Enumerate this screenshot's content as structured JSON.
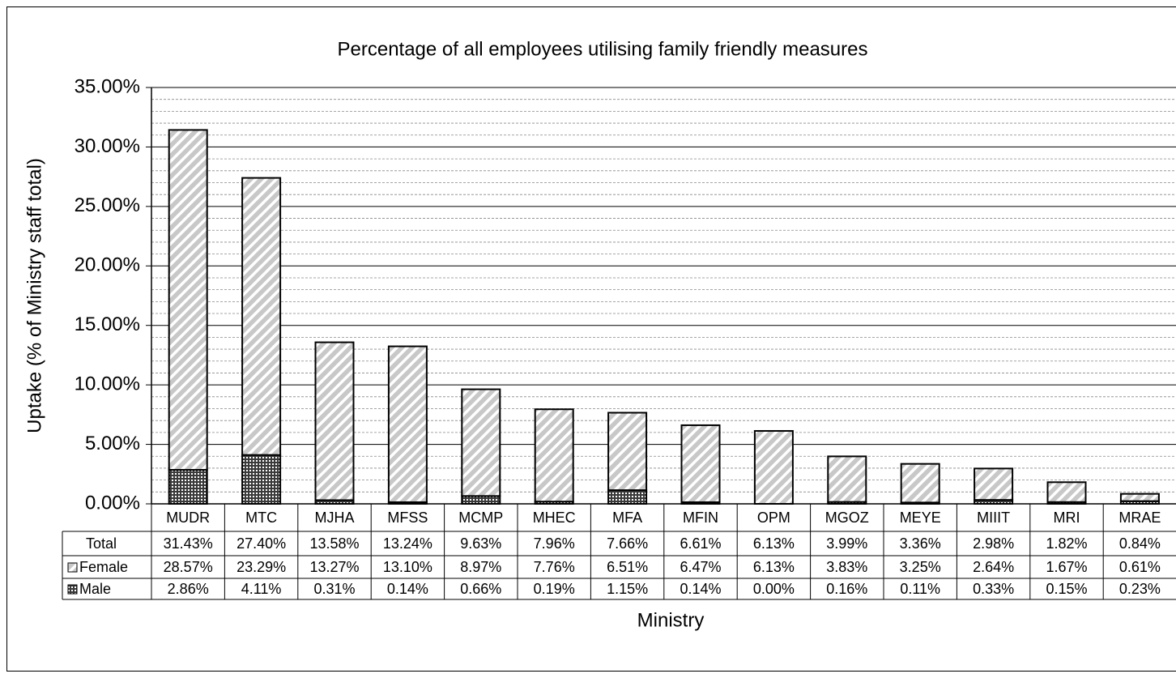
{
  "chart_data": {
    "type": "bar",
    "stacked": true,
    "title": "Percentage of all employees utilising family friendly measures",
    "ylabel": "Uptake (% of Ministry staff total)",
    "xlabel": "Ministry",
    "categories": [
      "MUDR",
      "MTC",
      "MJHA",
      "MFSS",
      "MCMP",
      "MHEC",
      "MFA",
      "MFIN",
      "OPM",
      "MGOZ",
      "MEYE",
      "MIIIT",
      "MRI",
      "MRAE"
    ],
    "series": [
      {
        "name": "Female",
        "color": "#c8c8c8",
        "values": [
          28.57,
          23.29,
          13.27,
          13.1,
          8.97,
          7.76,
          6.51,
          6.47,
          6.13,
          3.83,
          3.25,
          2.64,
          1.67,
          0.61
        ],
        "value_labels": [
          "28.57%",
          "23.29%",
          "13.27%",
          "13.10%",
          "8.97%",
          "7.76%",
          "6.51%",
          "6.47%",
          "6.13%",
          "3.83%",
          "3.25%",
          "2.64%",
          "1.67%",
          "0.61%"
        ]
      },
      {
        "name": "Male",
        "color": "#3a3a3a",
        "values": [
          2.86,
          4.11,
          0.31,
          0.14,
          0.66,
          0.19,
          1.15,
          0.14,
          0.0,
          0.16,
          0.11,
          0.33,
          0.15,
          0.23
        ],
        "value_labels": [
          "2.86%",
          "4.11%",
          "0.31%",
          "0.14%",
          "0.66%",
          "0.19%",
          "1.15%",
          "0.14%",
          "0.00%",
          "0.16%",
          "0.11%",
          "0.33%",
          "0.15%",
          "0.23%"
        ]
      }
    ],
    "total": {
      "name": "Total",
      "values": [
        31.43,
        27.4,
        13.58,
        13.24,
        9.63,
        7.96,
        7.66,
        6.61,
        6.13,
        3.99,
        3.36,
        2.98,
        1.82,
        0.84
      ],
      "value_labels": [
        "31.43%",
        "27.40%",
        "13.58%",
        "13.24%",
        "9.63%",
        "7.96%",
        "7.66%",
        "6.61%",
        "6.13%",
        "3.99%",
        "3.36%",
        "2.98%",
        "1.82%",
        "0.84%"
      ]
    },
    "ylim": [
      0,
      35
    ],
    "yticks": [
      {
        "value": 0,
        "label": "0.00%"
      },
      {
        "value": 5,
        "label": "5.00%"
      },
      {
        "value": 10,
        "label": "10.00%"
      },
      {
        "value": 15,
        "label": "15.00%"
      },
      {
        "value": 20,
        "label": "20.00%"
      },
      {
        "value": 25,
        "label": "25.00%"
      },
      {
        "value": 30,
        "label": "30.00%"
      },
      {
        "value": 35,
        "label": "35.00%"
      }
    ],
    "grid": true
  }
}
